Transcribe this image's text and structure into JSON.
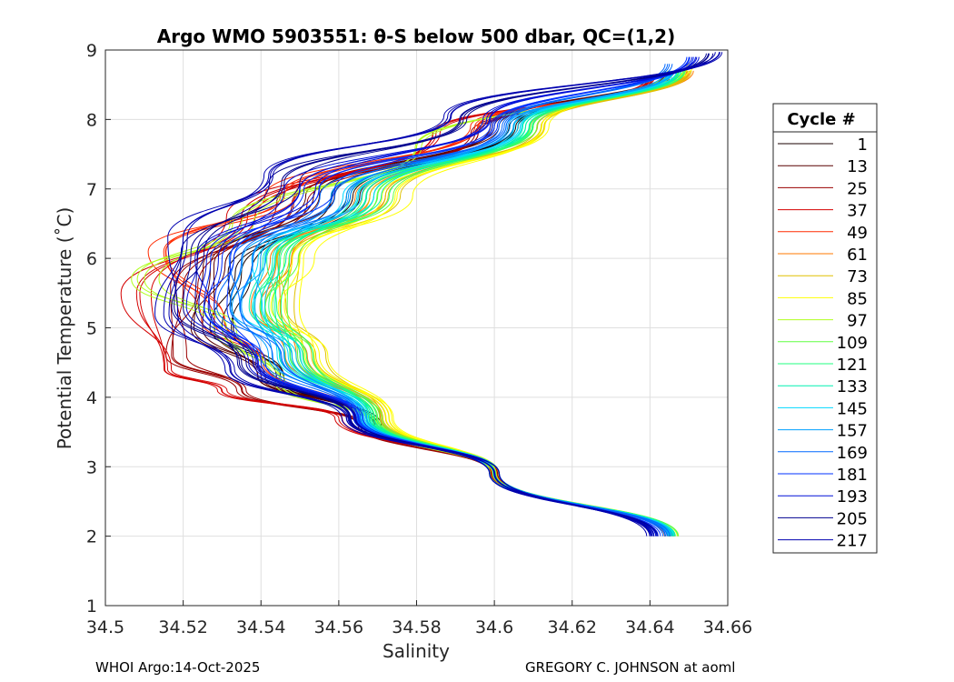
{
  "chart_data": {
    "type": "line",
    "title": "Argo WMO 5903551: θ-S below 500 dbar,  QC=(1,2)",
    "xlabel": "Salinity",
    "ylabel": "Potential Temperature (˚C)",
    "xlim": [
      34.5,
      34.66
    ],
    "ylim": [
      1,
      9
    ],
    "xticks": [
      34.5,
      34.52,
      34.54,
      34.56,
      34.58,
      34.6,
      34.62,
      34.64,
      34.66
    ],
    "xtick_labels": [
      "34.5",
      "34.52",
      "34.54",
      "34.56",
      "34.58",
      "34.6",
      "34.62",
      "34.64",
      "34.66"
    ],
    "yticks": [
      1,
      2,
      3,
      4,
      5,
      6,
      7,
      8,
      9
    ],
    "ytick_labels": [
      "1",
      "2",
      "3",
      "4",
      "5",
      "6",
      "7",
      "8",
      "9"
    ],
    "grid": true,
    "legend_title": "Cycle #",
    "legend_position": "outside-right",
    "series": [
      {
        "name": "1",
        "color": "#1a0000",
        "points": [
          [
            34.645,
            2.0
          ],
          [
            34.6,
            2.9
          ],
          [
            34.57,
            3.6
          ],
          [
            34.545,
            4.3
          ],
          [
            34.53,
            5.0
          ],
          [
            34.535,
            5.8
          ],
          [
            34.562,
            6.9
          ],
          [
            34.605,
            7.9
          ],
          [
            34.645,
            8.6
          ]
        ]
      },
      {
        "name": "13",
        "color": "#5a0000",
        "points": [
          [
            34.645,
            2.0
          ],
          [
            34.6,
            2.9
          ],
          [
            34.567,
            3.7
          ],
          [
            34.54,
            4.3
          ],
          [
            34.525,
            5.0
          ],
          [
            34.527,
            5.9
          ],
          [
            34.555,
            6.9
          ],
          [
            34.6,
            7.9
          ],
          [
            34.645,
            8.7
          ]
        ]
      },
      {
        "name": "25",
        "color": "#9a0000",
        "points": [
          [
            34.644,
            2.0
          ],
          [
            34.6,
            2.9
          ],
          [
            34.566,
            3.6
          ],
          [
            34.535,
            4.1
          ],
          [
            34.517,
            4.6
          ],
          [
            34.52,
            5.6
          ],
          [
            34.548,
            6.8
          ],
          [
            34.595,
            7.8
          ],
          [
            34.64,
            8.6
          ]
        ]
      },
      {
        "name": "37",
        "color": "#d40000",
        "points": [
          [
            34.645,
            2.0
          ],
          [
            34.6,
            2.9
          ],
          [
            34.56,
            3.7
          ],
          [
            34.53,
            4.1
          ],
          [
            34.516,
            4.4
          ],
          [
            34.508,
            5.5
          ],
          [
            34.535,
            6.6
          ],
          [
            34.585,
            7.8
          ],
          [
            34.64,
            8.6
          ]
        ]
      },
      {
        "name": "49",
        "color": "#ff2a00",
        "points": [
          [
            34.645,
            2.0
          ],
          [
            34.6,
            2.9
          ],
          [
            34.565,
            3.7
          ],
          [
            34.54,
            4.5
          ],
          [
            34.528,
            5.1
          ],
          [
            34.515,
            6.1
          ],
          [
            34.545,
            6.9
          ],
          [
            34.595,
            7.9
          ],
          [
            34.645,
            8.6
          ]
        ]
      },
      {
        "name": "61",
        "color": "#ff7a00",
        "points": [
          [
            34.646,
            2.0
          ],
          [
            34.6,
            2.9
          ],
          [
            34.57,
            3.7
          ],
          [
            34.55,
            4.6
          ],
          [
            34.541,
            5.3
          ],
          [
            34.544,
            6.0
          ],
          [
            34.568,
            6.9
          ],
          [
            34.61,
            7.9
          ],
          [
            34.65,
            8.7
          ]
        ]
      },
      {
        "name": "73",
        "color": "#e0c000",
        "points": [
          [
            34.646,
            2.0
          ],
          [
            34.6,
            2.9
          ],
          [
            34.572,
            3.7
          ],
          [
            34.553,
            4.6
          ],
          [
            34.545,
            5.3
          ],
          [
            34.548,
            6.0
          ],
          [
            34.572,
            6.9
          ],
          [
            34.612,
            7.9
          ],
          [
            34.65,
            8.7
          ]
        ]
      },
      {
        "name": "85",
        "color": "#ffff00",
        "points": [
          [
            34.647,
            2.0
          ],
          [
            34.6,
            2.9
          ],
          [
            34.573,
            3.7
          ],
          [
            34.555,
            4.6
          ],
          [
            34.546,
            5.3
          ],
          [
            34.55,
            6.0
          ],
          [
            34.575,
            6.9
          ],
          [
            34.613,
            7.9
          ],
          [
            34.65,
            8.8
          ]
        ]
      },
      {
        "name": "97",
        "color": "#b0ff20",
        "points": [
          [
            34.646,
            2.0
          ],
          [
            34.6,
            2.9
          ],
          [
            34.57,
            3.6
          ],
          [
            34.545,
            4.2
          ],
          [
            34.53,
            5.0
          ],
          [
            34.51,
            5.7
          ],
          [
            34.535,
            6.5
          ],
          [
            34.58,
            7.6
          ],
          [
            34.645,
            8.7
          ]
        ]
      },
      {
        "name": "109",
        "color": "#60ff40",
        "points": [
          [
            34.646,
            2.0
          ],
          [
            34.6,
            2.9
          ],
          [
            34.57,
            3.7
          ],
          [
            34.551,
            4.6
          ],
          [
            34.543,
            5.3
          ],
          [
            34.546,
            6.0
          ],
          [
            34.57,
            6.9
          ],
          [
            34.61,
            7.9
          ],
          [
            34.648,
            8.7
          ]
        ]
      },
      {
        "name": "121",
        "color": "#20ff80",
        "points": [
          [
            34.646,
            2.0
          ],
          [
            34.6,
            2.9
          ],
          [
            34.569,
            3.7
          ],
          [
            34.55,
            4.6
          ],
          [
            34.542,
            5.3
          ],
          [
            34.545,
            6.0
          ],
          [
            34.569,
            6.9
          ],
          [
            34.609,
            7.9
          ],
          [
            34.648,
            8.7
          ]
        ]
      },
      {
        "name": "133",
        "color": "#00f0b0",
        "points": [
          [
            34.646,
            2.0
          ],
          [
            34.6,
            2.9
          ],
          [
            34.568,
            3.7
          ],
          [
            34.548,
            4.6
          ],
          [
            34.54,
            5.3
          ],
          [
            34.543,
            6.0
          ],
          [
            34.567,
            6.9
          ],
          [
            34.608,
            7.9
          ],
          [
            34.647,
            8.7
          ]
        ]
      },
      {
        "name": "145",
        "color": "#00d8ff",
        "points": [
          [
            34.645,
            2.0
          ],
          [
            34.6,
            2.9
          ],
          [
            34.567,
            3.7
          ],
          [
            34.547,
            4.6
          ],
          [
            34.538,
            5.3
          ],
          [
            34.541,
            6.0
          ],
          [
            34.565,
            6.9
          ],
          [
            34.606,
            7.9
          ],
          [
            34.646,
            8.7
          ]
        ]
      },
      {
        "name": "157",
        "color": "#00a0ff",
        "points": [
          [
            34.645,
            2.0
          ],
          [
            34.6,
            2.9
          ],
          [
            34.566,
            3.7
          ],
          [
            34.545,
            4.6
          ],
          [
            34.535,
            5.3
          ],
          [
            34.538,
            6.0
          ],
          [
            34.562,
            6.9
          ],
          [
            34.604,
            7.9
          ],
          [
            34.645,
            8.7
          ]
        ]
      },
      {
        "name": "169",
        "color": "#0068ff",
        "points": [
          [
            34.644,
            2.0
          ],
          [
            34.6,
            2.9
          ],
          [
            34.565,
            3.7
          ],
          [
            34.543,
            4.6
          ],
          [
            34.532,
            5.3
          ],
          [
            34.535,
            6.0
          ],
          [
            34.559,
            6.9
          ],
          [
            34.602,
            7.9
          ],
          [
            34.645,
            8.8
          ]
        ]
      },
      {
        "name": "181",
        "color": "#0030ff",
        "points": [
          [
            34.642,
            2.0
          ],
          [
            34.6,
            2.9
          ],
          [
            34.565,
            3.7
          ],
          [
            34.54,
            4.5
          ],
          [
            34.528,
            5.3
          ],
          [
            34.53,
            6.0
          ],
          [
            34.555,
            7.0
          ],
          [
            34.6,
            7.9
          ],
          [
            34.65,
            8.9
          ]
        ]
      },
      {
        "name": "193",
        "color": "#0010d8",
        "points": [
          [
            34.641,
            2.0
          ],
          [
            34.6,
            2.9
          ],
          [
            34.564,
            3.7
          ],
          [
            34.538,
            4.5
          ],
          [
            34.524,
            5.3
          ],
          [
            34.526,
            6.0
          ],
          [
            34.55,
            7.0
          ],
          [
            34.598,
            8.0
          ],
          [
            34.652,
            8.9
          ]
        ]
      },
      {
        "name": "205",
        "color": "#000090",
        "points": [
          [
            34.641,
            2.0
          ],
          [
            34.6,
            2.9
          ],
          [
            34.563,
            3.7
          ],
          [
            34.535,
            4.5
          ],
          [
            34.52,
            5.3
          ],
          [
            34.522,
            6.1
          ],
          [
            34.546,
            7.1
          ],
          [
            34.592,
            8.0
          ],
          [
            34.655,
            8.95
          ]
        ]
      },
      {
        "name": "217",
        "color": "#0000b0",
        "points": [
          [
            34.64,
            2.0
          ],
          [
            34.6,
            2.9
          ],
          [
            34.562,
            3.7
          ],
          [
            34.532,
            4.4
          ],
          [
            34.515,
            5.2
          ],
          [
            34.52,
            6.3
          ],
          [
            34.542,
            7.2
          ],
          [
            34.588,
            8.05
          ],
          [
            34.658,
            8.97
          ]
        ]
      }
    ]
  },
  "footer": {
    "left": "WHOI Argo:14-Oct-2025",
    "right": "GREGORY C. JOHNSON at aoml"
  }
}
